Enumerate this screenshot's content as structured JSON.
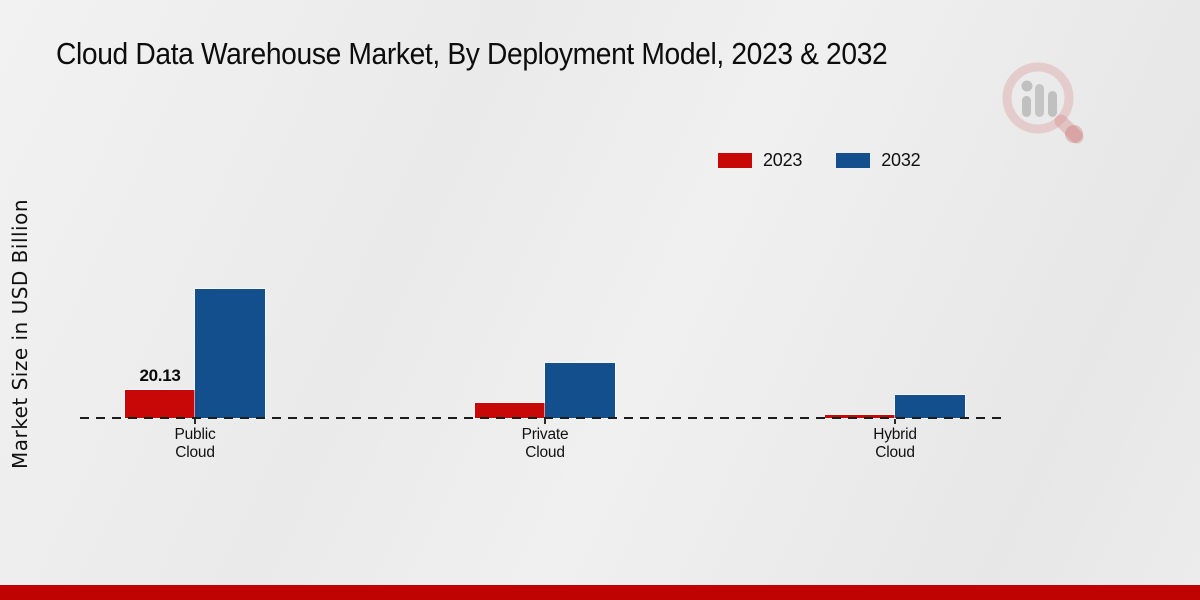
{
  "title": "Cloud Data Warehouse Market, By Deployment Model, 2023 & 2032",
  "watermark_icon": "magnifier-bar-chart-logo",
  "footer": {
    "accent_color": "#bf0303"
  },
  "chart_data": {
    "type": "bar",
    "title": "Cloud Data Warehouse Market, By Deployment Model, 2023 & 2032",
    "xlabel": "",
    "ylabel": "Market Size in USD Billion",
    "categories": [
      "Public Cloud",
      "Private Cloud",
      "Hybrid Cloud"
    ],
    "series": [
      {
        "name": "2023",
        "color": "#c80707",
        "values": [
          20.13,
          11.0,
          1.8
        ]
      },
      {
        "name": "2032",
        "color": "#124f8c",
        "values": [
          92.5,
          39.5,
          16.5
        ]
      }
    ],
    "annotations": [
      {
        "category_index": 0,
        "series_index": 0,
        "text": "20.13"
      }
    ],
    "ylim": [
      0,
      100
    ],
    "grid": false,
    "legend_position": "upper right",
    "baseline_style": "dashed"
  }
}
